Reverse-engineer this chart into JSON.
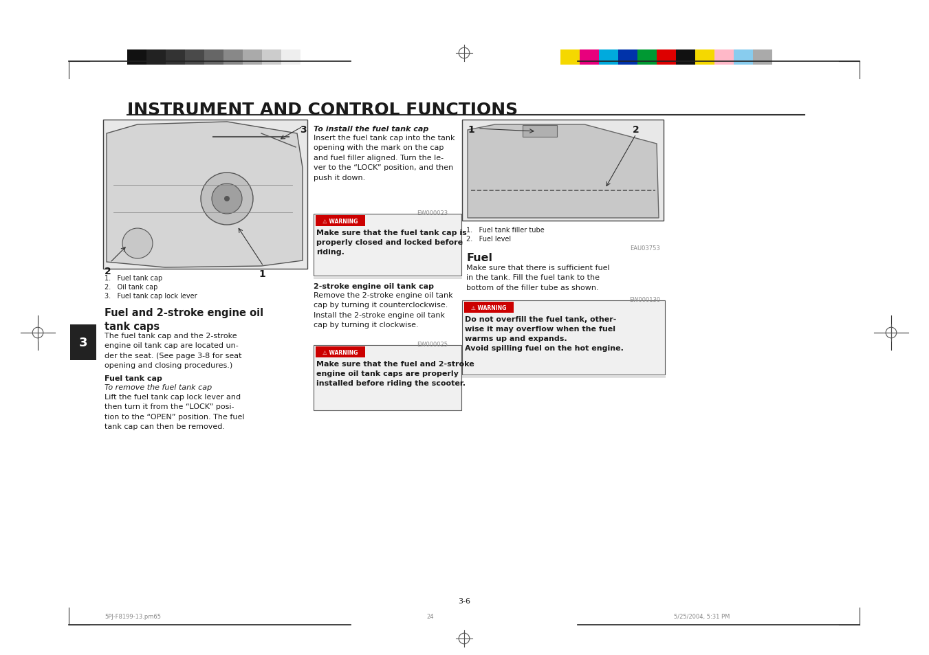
{
  "page_background": "#ffffff",
  "title": "INSTRUMENT AND CONTROL FUNCTIONS",
  "body_text_color": "#1a1a1a",
  "page_number": "3-6",
  "footer_left": "5PJ-F8199-13.pm65",
  "footer_center": "24",
  "footer_right": "5/25/2004, 5:31 PM",
  "grayscale_colors": [
    "#111111",
    "#222222",
    "#333333",
    "#4a4a4a",
    "#666666",
    "#888888",
    "#aaaaaa",
    "#cccccc",
    "#eeeeee"
  ],
  "color_swatches": [
    "#f5d800",
    "#e8007d",
    "#00aadd",
    "#0033aa",
    "#009933",
    "#dd0000",
    "#111111",
    "#f5d800",
    "#f5b8c8",
    "#88ccee",
    "#aaaaaa"
  ],
  "fig_width": 13.51,
  "fig_height": 9.54,
  "dpi": 100
}
